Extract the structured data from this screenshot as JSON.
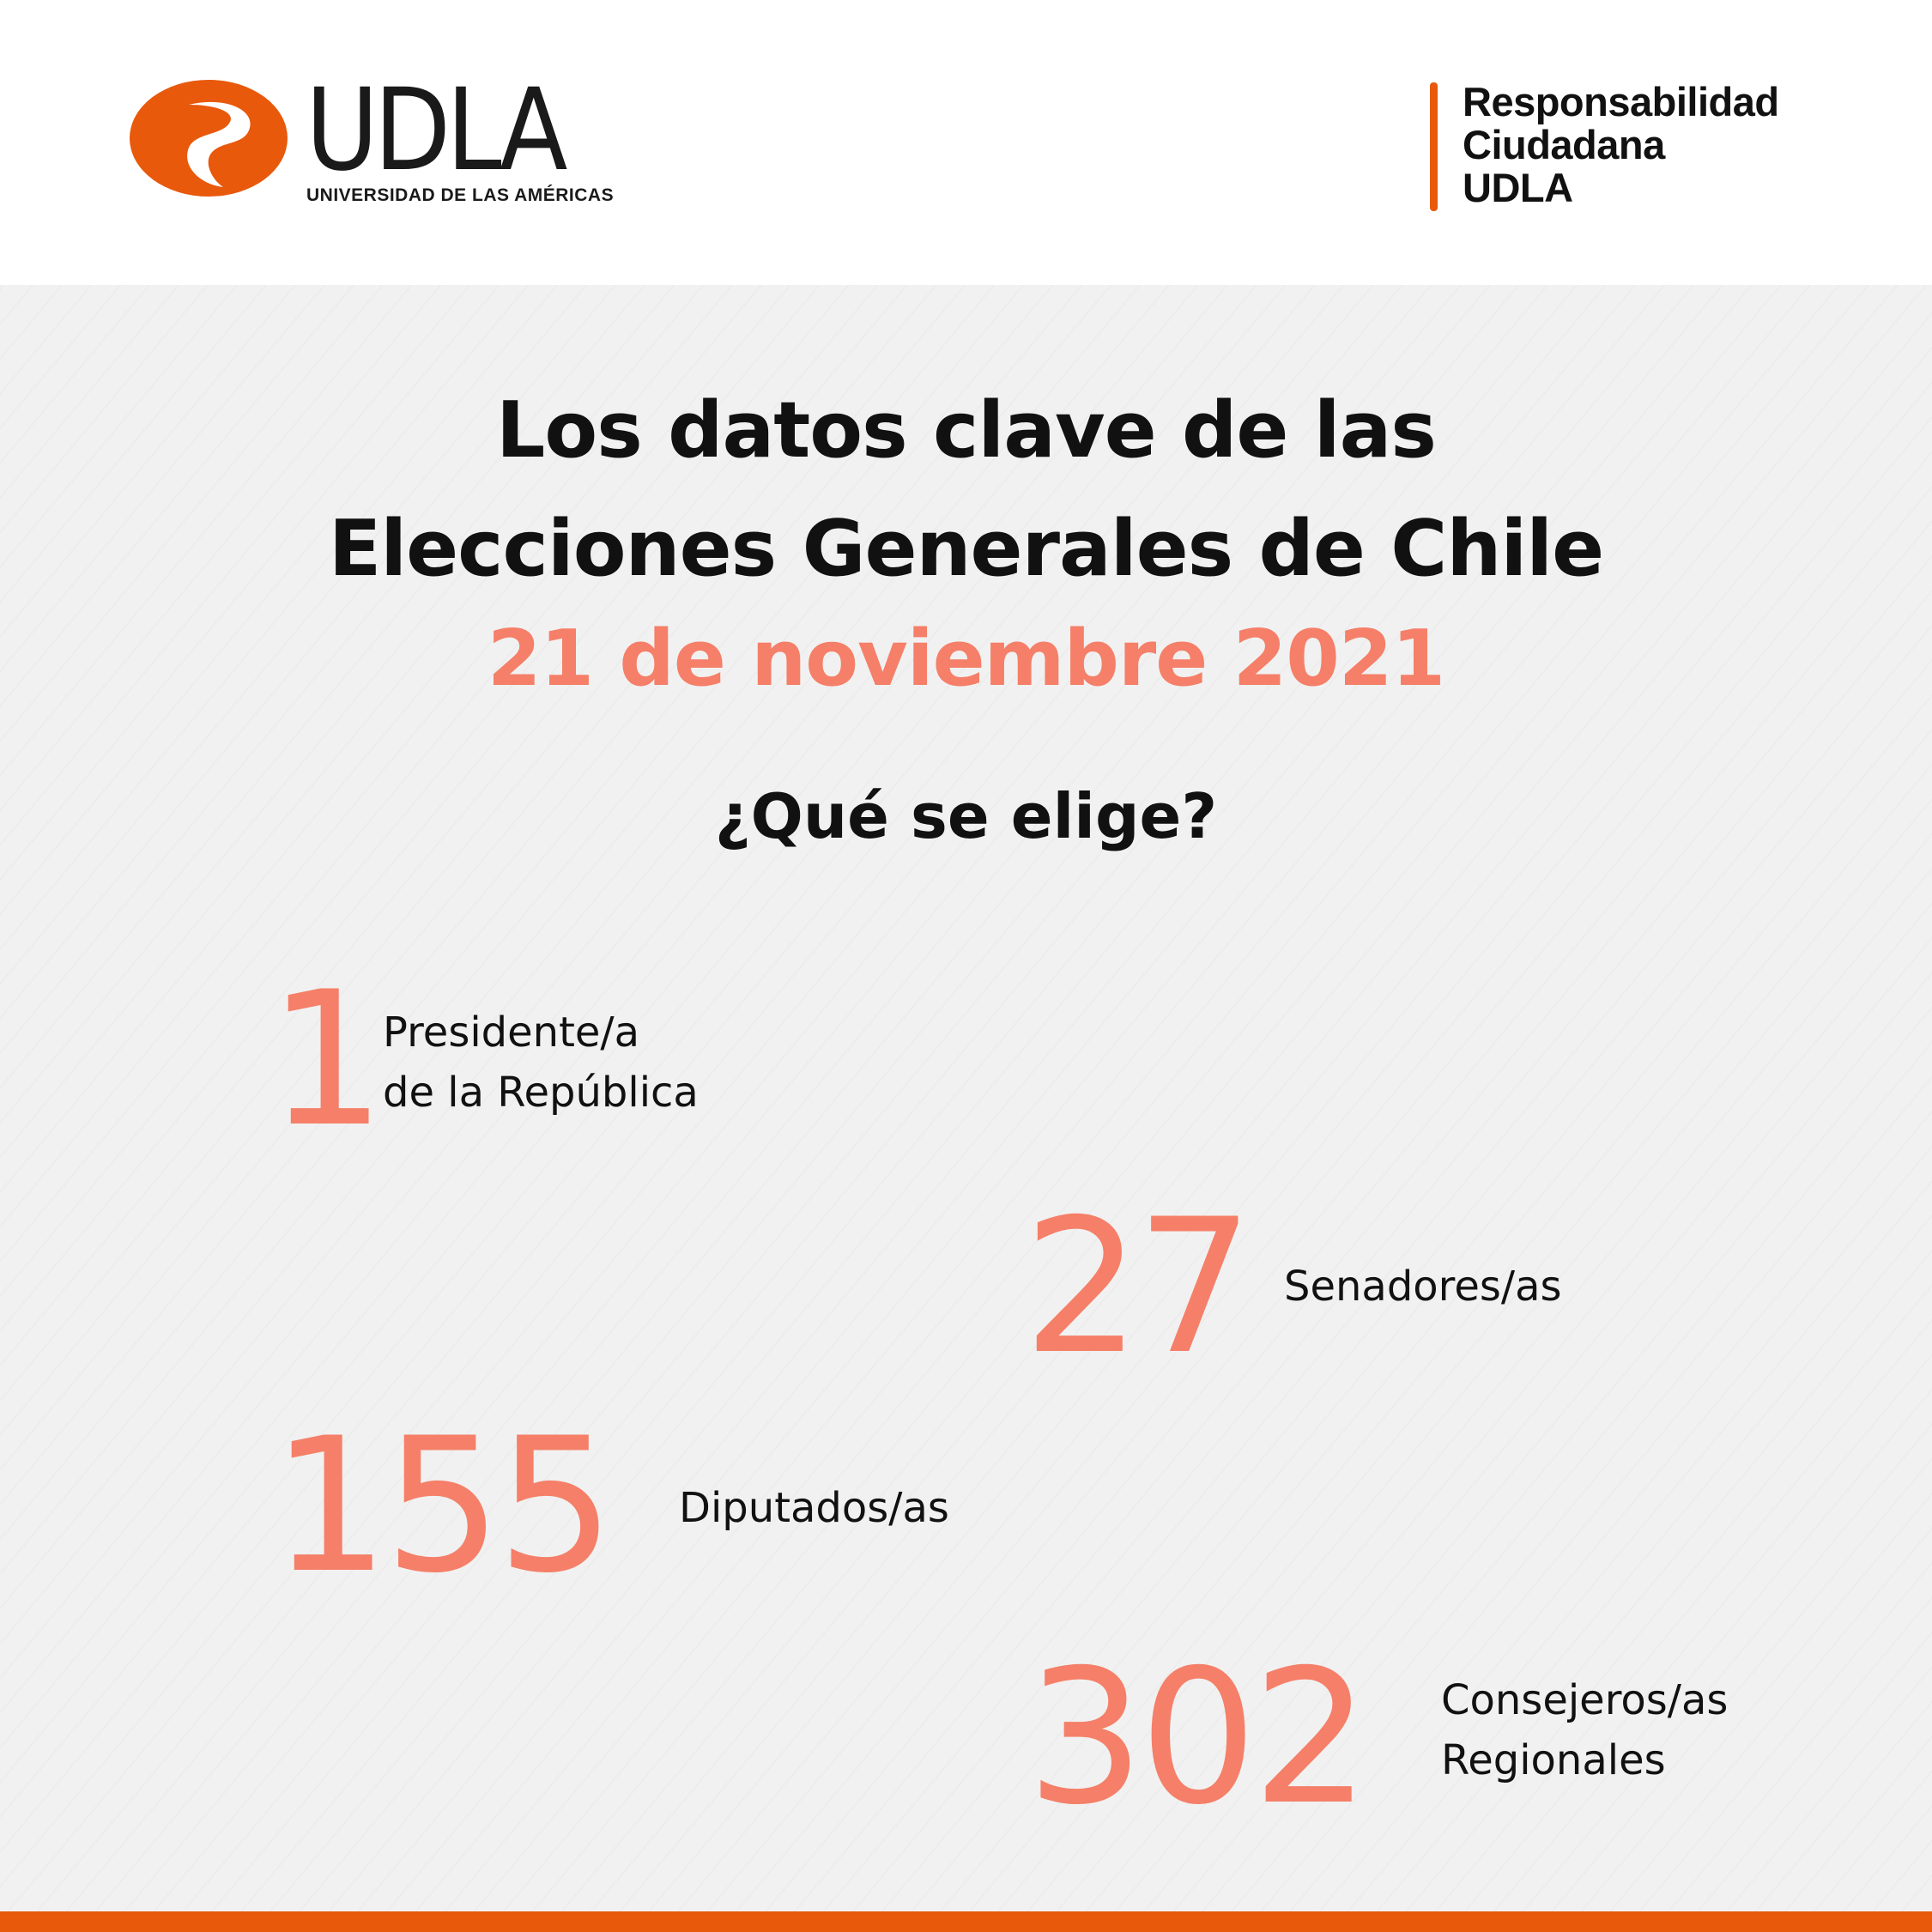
{
  "header": {
    "logo": {
      "wordmark": "UDLA",
      "subtitle": "UNIVERSIDAD DE LAS AMÉRICAS",
      "brand_color": "#e8590c"
    },
    "responsabilidad": {
      "line1": "Responsabilidad",
      "line2": "Ciudadana",
      "line3": "UDLA"
    }
  },
  "main": {
    "title_line1": "Los datos clave de las",
    "title_line2": "Elecciones Generales de Chile",
    "date": "21 de noviembre 2021",
    "question": "¿Qué se elige?",
    "accent_color": "#f57f68",
    "stats": [
      {
        "number": "1",
        "label_line1": "Presidente/a",
        "label_line2": "de la República"
      },
      {
        "number": "27",
        "label_line1": "Senadores/as",
        "label_line2": ""
      },
      {
        "number": "155",
        "label_line1": "Diputados/as",
        "label_line2": ""
      },
      {
        "number": "302",
        "label_line1": "Consejeros/as",
        "label_line2": "Regionales"
      }
    ]
  },
  "footer": {
    "bar_color": "#e8590c"
  }
}
